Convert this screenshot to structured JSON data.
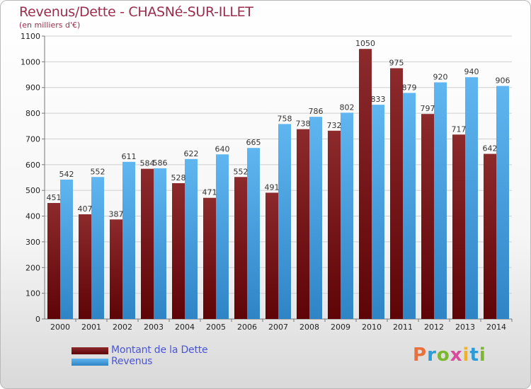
{
  "chart_data": {
    "type": "bar",
    "title": "Revenus/Dette - CHASNé-SUR-ILLET",
    "subtitle": "(en milliers d'€)",
    "categories": [
      "2000",
      "2001",
      "2002",
      "2003",
      "2004",
      "2005",
      "2006",
      "2007",
      "2008",
      "2009",
      "2010",
      "2011",
      "2012",
      "2013",
      "2014"
    ],
    "series": [
      {
        "name": "Montant de la Dette",
        "color": "#6b0f12",
        "values": [
          451,
          407,
          387,
          584,
          528,
          471,
          552,
          491,
          738,
          732,
          1050,
          975,
          797,
          717,
          642
        ]
      },
      {
        "name": "Revenus",
        "color": "#4fa8e8",
        "values": [
          542,
          552,
          611,
          586,
          622,
          640,
          665,
          758,
          786,
          802,
          833,
          879,
          920,
          940,
          906
        ]
      }
    ],
    "ylim": [
      0,
      1100
    ],
    "yticks": [
      0,
      100,
      200,
      300,
      400,
      500,
      600,
      700,
      800,
      900,
      1000,
      1100
    ],
    "grid": true,
    "legend_position": "bottom-left"
  },
  "logo": {
    "letters": [
      "P",
      "r",
      "o",
      "x",
      "i",
      "t",
      "i"
    ],
    "colors": [
      "#e8703a",
      "#2c9bd6",
      "#7cb82f",
      "#d94a9a",
      "#f0b22b",
      "#2c9bd6",
      "#7cb82f"
    ]
  }
}
